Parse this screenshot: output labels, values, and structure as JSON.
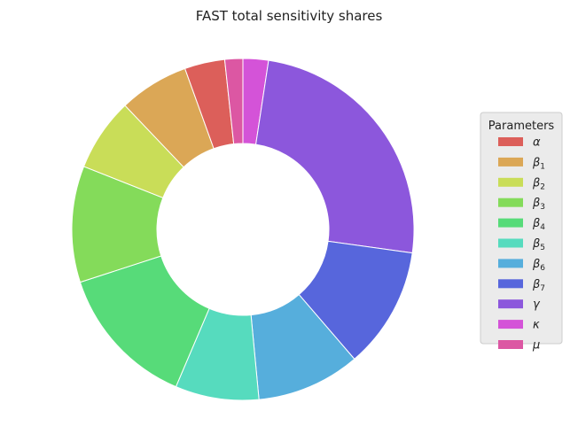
{
  "chart_data": {
    "type": "pie",
    "donut": true,
    "title": "FAST total sensitivity shares",
    "start_angle_deg": 90,
    "direction": "clockwise",
    "legend": {
      "title": "Parameters",
      "placement": "right"
    },
    "slices": [
      {
        "label": "κ",
        "value": 2.4,
        "color": "#d453d8"
      },
      {
        "label": "γ",
        "value": 24.8,
        "color": "#8c57dc"
      },
      {
        "label": "β7",
        "value": 11.5,
        "color": "#5766dc"
      },
      {
        "label": "β6",
        "value": 9.8,
        "color": "#56aedc"
      },
      {
        "label": "β5",
        "value": 7.9,
        "color": "#56dbbe"
      },
      {
        "label": "β4",
        "value": 13.6,
        "color": "#57db79"
      },
      {
        "label": "β3",
        "value": 11.0,
        "color": "#84db5a"
      },
      {
        "label": "β2",
        "value": 6.9,
        "color": "#c9dd58"
      },
      {
        "label": "β1",
        "value": 6.6,
        "color": "#dba756"
      },
      {
        "label": "α",
        "value": 3.8,
        "color": "#dc5f5a"
      },
      {
        "label": "μ",
        "value": 1.7,
        "color": "#dc57a3"
      }
    ],
    "legend_entries": [
      {
        "base": "α",
        "sub": "",
        "color": "#dc5f5a"
      },
      {
        "base": "β",
        "sub": "1",
        "color": "#dba756"
      },
      {
        "base": "β",
        "sub": "2",
        "color": "#c9dd58"
      },
      {
        "base": "β",
        "sub": "3",
        "color": "#84db5a"
      },
      {
        "base": "β",
        "sub": "4",
        "color": "#57db79"
      },
      {
        "base": "β",
        "sub": "5",
        "color": "#56dbbe"
      },
      {
        "base": "β",
        "sub": "6",
        "color": "#56aedc"
      },
      {
        "base": "β",
        "sub": "7",
        "color": "#5766dc"
      },
      {
        "base": "γ",
        "sub": "",
        "color": "#8c57dc"
      },
      {
        "base": "κ",
        "sub": "",
        "color": "#d453d8"
      },
      {
        "base": "μ",
        "sub": "",
        "color": "#dc57a3"
      }
    ]
  }
}
